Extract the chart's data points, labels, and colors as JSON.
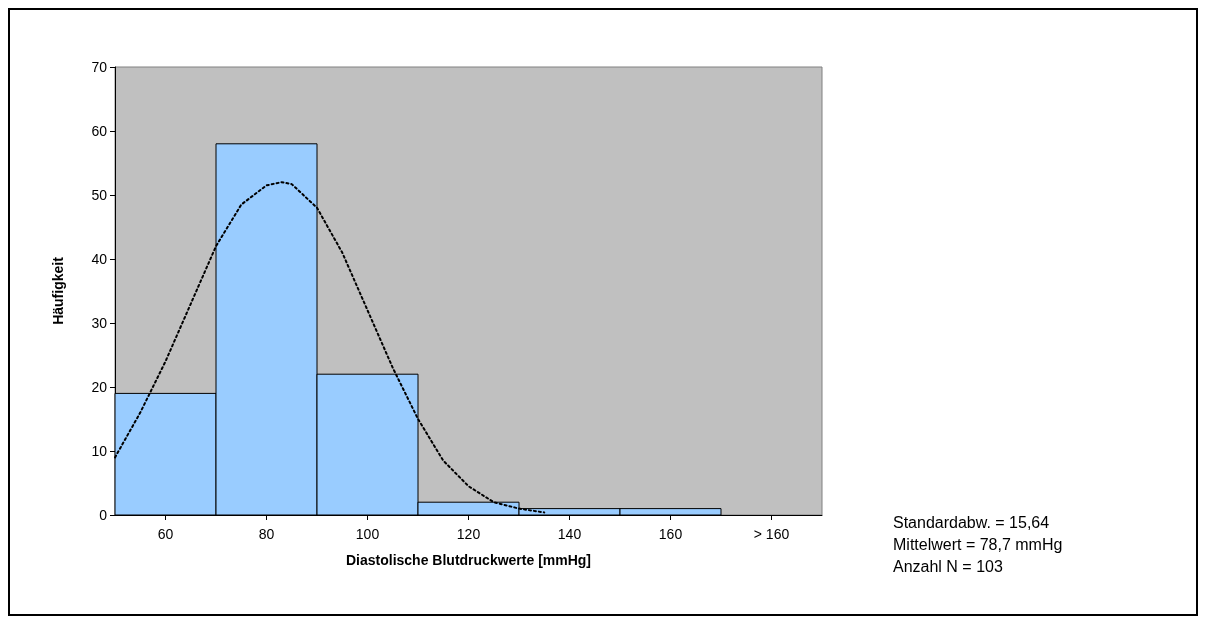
{
  "chart_data": {
    "type": "histogram",
    "xlabel": "Diastolische Blutdruckwerte [mmHg]",
    "ylabel": "Häufigkeit",
    "bins": [
      50,
      70,
      90,
      110,
      130,
      150,
      170,
      190
    ],
    "values": [
      19,
      58,
      22,
      2,
      1,
      1,
      0
    ],
    "color": "#99ccff",
    "series": [
      {
        "type": "line",
        "color": "#000000",
        "line_style": "dotted",
        "x": [
          50,
          55,
          60,
          65,
          70,
          75,
          80,
          83,
          85,
          90,
          95,
          100,
          105,
          110,
          115,
          120,
          125,
          130,
          135
        ],
        "values": [
          9,
          16,
          24,
          33,
          42,
          48.5,
          51.5,
          52,
          51.7,
          48,
          41,
          32,
          23,
          15,
          8.5,
          4.5,
          2,
          1,
          0.4
        ]
      }
    ],
    "xlim": [
      50,
      190
    ],
    "xticks": [
      60,
      80,
      100,
      120,
      140,
      160,
      {
        "value": 180,
        "label": "> 160"
      }
    ],
    "ylim": [
      0,
      70
    ],
    "yticks": [
      0,
      10,
      20,
      30,
      40,
      50,
      60,
      70
    ],
    "grid": false,
    "annotations": [
      "Standardabw. = 15,64",
      "Mittelwert = 78,7 mmHg",
      "Anzahl N = 103"
    ]
  }
}
